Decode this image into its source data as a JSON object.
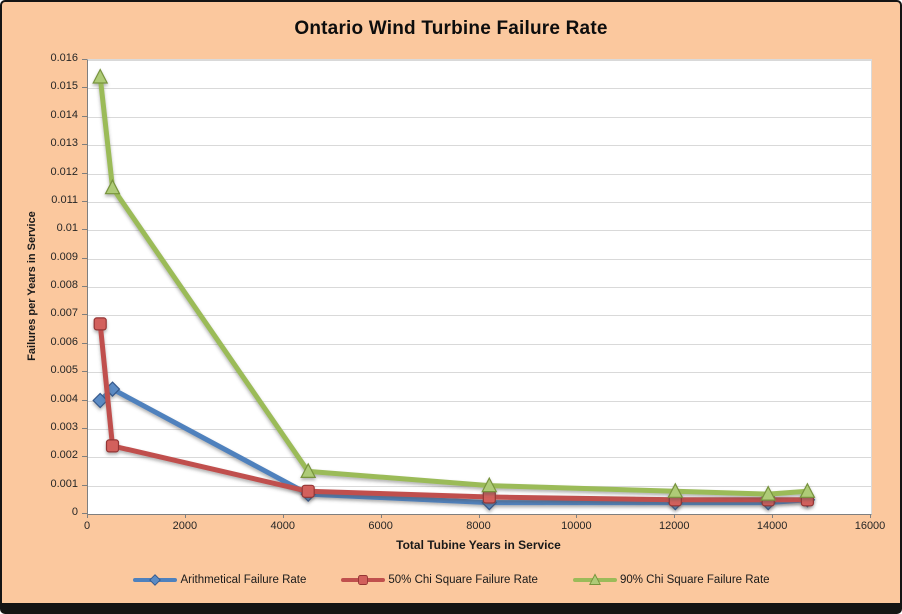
{
  "title": "Ontario Wind Turbine Failure Rate",
  "colors": {
    "background": "#FBC89E",
    "plot_background": "#FFFFFF",
    "gridline": "#D9D9D9",
    "axis_line": "#7F7F7F",
    "text": "#1A1A1A",
    "frame_border": "#141414"
  },
  "chart_data": {
    "type": "line",
    "title": "Ontario Wind Turbine Failure Rate",
    "xlabel": "Total Tubine Years in Service",
    "ylabel": "Failures per Years in Service",
    "xlim": [
      0,
      16000
    ],
    "ylim": [
      0,
      0.016
    ],
    "x_ticks": [
      "0",
      "2000",
      "4000",
      "6000",
      "8000",
      "10000",
      "12000",
      "14000",
      "16000"
    ],
    "y_ticks": [
      "0",
      "0.001",
      "0.002",
      "0.003",
      "0.004",
      "0.005",
      "0.006",
      "0.007",
      "0.008",
      "0.009",
      "0.01",
      "0.011",
      "0.012",
      "0.013",
      "0.014",
      "0.015",
      "0.016"
    ],
    "grid": "horizontal-only",
    "legend_position": "bottom",
    "x": [
      250,
      500,
      4500,
      8200,
      12000,
      13900,
      14700
    ],
    "series": [
      {
        "name": "Arithmetical Failure Rate",
        "marker": "diamond",
        "color": "#4F81BD",
        "marker_fill": "#5B8BC4",
        "marker_stroke": "#36598C",
        "values": [
          0.004,
          0.0044,
          0.0007,
          0.0004,
          0.0004,
          0.0004,
          0.0005
        ]
      },
      {
        "name": "50% Chi Square Failure Rate",
        "marker": "square",
        "color": "#C0504D",
        "marker_fill": "#D2605C",
        "marker_stroke": "#943634",
        "values": [
          0.0067,
          0.0024,
          0.0008,
          0.0006,
          0.0005,
          0.0005,
          0.0005
        ]
      },
      {
        "name": "90% Chi Square Failure Rate",
        "marker": "triangle",
        "color": "#9BBB59",
        "marker_fill": "#AECB77",
        "marker_stroke": "#77933C",
        "values": [
          0.0154,
          0.0115,
          0.0015,
          0.001,
          0.0008,
          0.0007,
          0.0008
        ]
      }
    ]
  }
}
